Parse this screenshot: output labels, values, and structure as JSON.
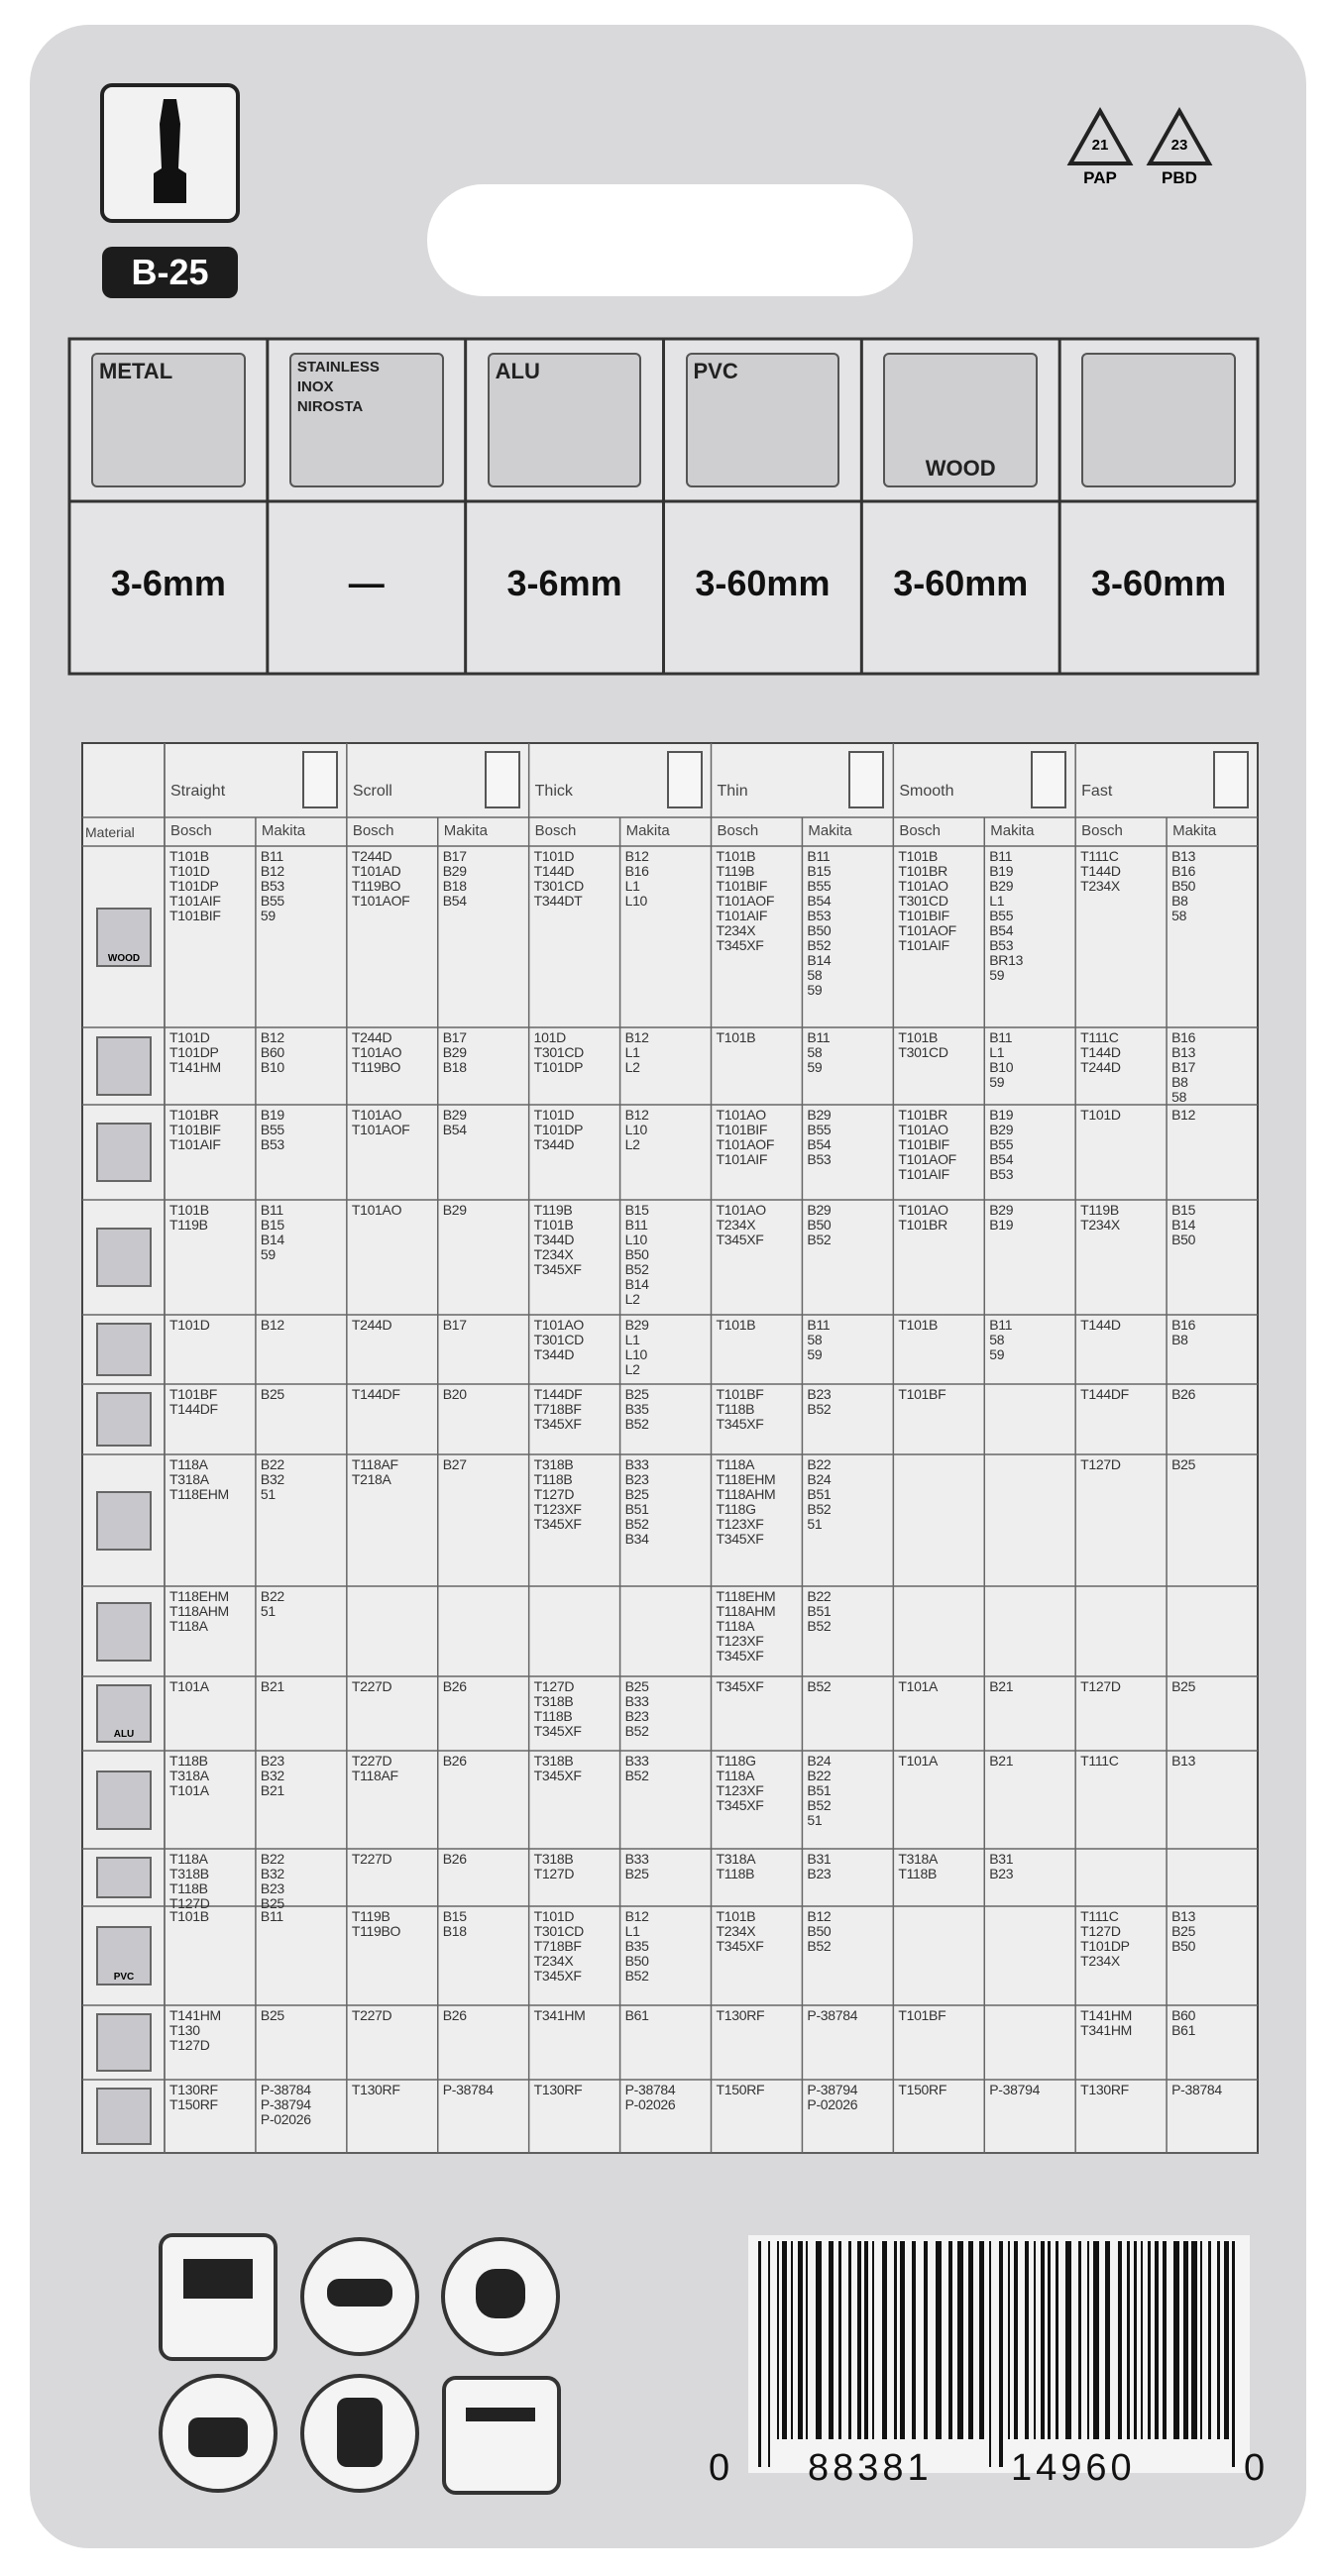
{
  "header": {
    "code": "B-25",
    "recycle": [
      {
        "number": "21",
        "label": "PAP"
      },
      {
        "number": "23",
        "label": "PBD"
      }
    ]
  },
  "materials": {
    "columns": [
      {
        "icon": [
          "METAL"
        ],
        "thickness": "3-6mm"
      },
      {
        "icon": [
          "STAINLESS",
          "INOX",
          "NIROSTA"
        ],
        "thickness": "—"
      },
      {
        "icon": [
          "ALU"
        ],
        "thickness": "3-6mm"
      },
      {
        "icon": [
          "PVC"
        ],
        "thickness": "3-60mm"
      },
      {
        "icon": [
          "WOOD"
        ],
        "thickness": "3-60mm"
      },
      {
        "thickness": "3-60mm"
      }
    ]
  },
  "table": {
    "material_header": "Material",
    "groups": [
      "Straight",
      "Scroll",
      "Thick",
      "Thin",
      "Smooth",
      "Fast"
    ],
    "brands": [
      "Bosch",
      "Makita"
    ],
    "rows": [
      {
        "icon": "WOOD",
        "cells": [
          [
            "T101B",
            "T101D",
            "T101DP",
            "T101AIF",
            "T101BIF"
          ],
          [
            "B11",
            "B12",
            "B53",
            "B55",
            "59"
          ],
          [
            "T244D",
            "T101AD",
            "T119BO",
            "T101AOF"
          ],
          [
            "B17",
            "B29",
            "B18",
            "B54"
          ],
          [
            "T101D",
            "T144D",
            "T301CD",
            "T344DT"
          ],
          [
            "B12",
            "B16",
            "L1",
            "L10"
          ],
          [
            "T101B",
            "T119B",
            "T101BIF",
            "T101AOF",
            "T101AIF",
            "T234X",
            "T345XF"
          ],
          [
            "B11",
            "B15",
            "B55",
            "B54",
            "B53",
            "B50",
            "B52",
            "B14",
            "58",
            "59"
          ],
          [
            "T101B",
            "T101BR",
            "T101AO",
            "T301CD",
            "T101BIF",
            "T101AOF",
            "T101AIF"
          ],
          [
            "B11",
            "B19",
            "B29",
            "L1",
            "B55",
            "B54",
            "B53",
            "BR13",
            "59"
          ],
          [
            "T111C",
            "T144D",
            "T234X"
          ],
          [
            "B13",
            "B16",
            "B50",
            "B8",
            "58"
          ]
        ]
      },
      {
        "cells": [
          [
            "T101D",
            "T101DP",
            "T141HM"
          ],
          [
            "B12",
            "B60",
            "B10"
          ],
          [
            "T244D",
            "T101AO",
            "T119BO"
          ],
          [
            "B17",
            "B29",
            "B18"
          ],
          [
            "101D",
            "T301CD",
            "T101DP"
          ],
          [
            "B12",
            "L1",
            "L2"
          ],
          [
            "T101B"
          ],
          [
            "B11",
            "58",
            "59"
          ],
          [
            "T101B",
            "T301CD"
          ],
          [
            "B11",
            "L1",
            "B10",
            "59"
          ],
          [
            "T111C",
            "T144D",
            "T244D"
          ],
          [
            "B16",
            "B13",
            "B17",
            "B8",
            "58"
          ]
        ]
      },
      {
        "cells": [
          [
            "T101BR",
            "T101BIF",
            "T101AIF"
          ],
          [
            "B19",
            "B55",
            "B53"
          ],
          [
            "T101AO",
            "T101AOF"
          ],
          [
            "B29",
            "B54"
          ],
          [
            "T101D",
            "T101DP",
            "T344D"
          ],
          [
            "B12",
            "L10",
            "L2"
          ],
          [
            "T101AO",
            "T101BIF",
            "T101AOF",
            "T101AIF"
          ],
          [
            "B29",
            "B55",
            "B54",
            "B53"
          ],
          [
            "T101BR",
            "T101AO",
            "T101BIF",
            "T101AOF",
            "T101AIF"
          ],
          [
            "B19",
            "B29",
            "B55",
            "B54",
            "B53"
          ],
          [
            "T101D"
          ],
          [
            "B12"
          ]
        ]
      },
      {
        "cells": [
          [
            "T101B",
            "T119B"
          ],
          [
            "B11",
            "B15",
            "B14",
            "59"
          ],
          [
            "T101AO"
          ],
          [
            "B29"
          ],
          [
            "T119B",
            "T101B",
            "T344D",
            "T234X",
            "T345XF"
          ],
          [
            "B15",
            "B11",
            "L10",
            "B50",
            "B52",
            "B14",
            "L2"
          ],
          [
            "T101AO",
            "T234X",
            "T345XF"
          ],
          [
            "B29",
            "B50",
            "B52"
          ],
          [
            "T101AO",
            "T101BR"
          ],
          [
            "B29",
            "B19"
          ],
          [
            "T119B",
            "T234X"
          ],
          [
            "B15",
            "B14",
            "B50"
          ]
        ]
      },
      {
        "cells": [
          [
            "T101D"
          ],
          [
            "B12"
          ],
          [
            "T244D"
          ],
          [
            "B17"
          ],
          [
            "T101AO",
            "T301CD",
            "T344D"
          ],
          [
            "B29",
            "L1",
            "L10",
            "L2"
          ],
          [
            "T101B"
          ],
          [
            "B11",
            "58",
            "59"
          ],
          [
            "T101B"
          ],
          [
            "B11",
            "58",
            "59"
          ],
          [
            "T144D"
          ],
          [
            "B16",
            "B8"
          ]
        ]
      },
      {
        "cells": [
          [
            "T101BF",
            "T144DF"
          ],
          [
            "B25"
          ],
          [
            "T144DF"
          ],
          [
            "B20"
          ],
          [
            "T144DF",
            "T718BF",
            "T345XF"
          ],
          [
            "B25",
            "B35",
            "B52"
          ],
          [
            "T101BF",
            "T118B",
            "T345XF"
          ],
          [
            "B23",
            "B52"
          ],
          [
            "T101BF"
          ],
          [],
          [
            "T144DF"
          ],
          [
            "B26"
          ]
        ]
      },
      {
        "cells": [
          [
            "T118A",
            "T318A",
            "T118EHM"
          ],
          [
            "B22",
            "B32",
            "51"
          ],
          [
            "T118AF",
            "T218A"
          ],
          [
            "B27"
          ],
          [
            "T318B",
            "T118B",
            "T127D",
            "T123XF",
            "T345XF"
          ],
          [
            "B33",
            "B23",
            "B25",
            "B51",
            "B52",
            "B34"
          ],
          [
            "T118A",
            "T118EHM",
            "T118AHM",
            "T118G",
            "T123XF",
            "T345XF"
          ],
          [
            "B22",
            "B24",
            "B51",
            "B52",
            "51"
          ],
          [],
          [],
          [
            "T127D"
          ],
          [
            "B25"
          ]
        ]
      },
      {
        "cells": [
          [
            "T118EHM",
            "T118AHM",
            "T118A"
          ],
          [
            "B22",
            "51"
          ],
          [],
          [],
          [],
          [],
          [
            "T118EHM",
            "T118AHM",
            "T118A",
            "T123XF",
            "T345XF"
          ],
          [
            "B22",
            "B51",
            "B52"
          ],
          [],
          [],
          [],
          []
        ]
      },
      {
        "icon": "ALU",
        "cells": [
          [
            "T101A"
          ],
          [
            "B21"
          ],
          [
            "T227D"
          ],
          [
            "B26"
          ],
          [
            "T127D",
            "T318B",
            "T118B",
            "T345XF"
          ],
          [
            "B25",
            "B33",
            "B23",
            "B52"
          ],
          [
            "T345XF"
          ],
          [
            "B52"
          ],
          [
            "T101A"
          ],
          [
            "B21"
          ],
          [
            "T127D"
          ],
          [
            "B25"
          ]
        ]
      },
      {
        "cells": [
          [
            "T118B",
            "T318A",
            "T101A"
          ],
          [
            "B23",
            "B32",
            "B21"
          ],
          [
            "T227D",
            "T118AF"
          ],
          [
            "B26"
          ],
          [
            "T318B",
            "T345XF"
          ],
          [
            "B33",
            "B52"
          ],
          [
            "T118G",
            "T118A",
            "T123XF",
            "T345XF"
          ],
          [
            "B24",
            "B22",
            "B51",
            "B52",
            "51"
          ],
          [
            "T101A"
          ],
          [
            "B21"
          ],
          [
            "T111C"
          ],
          [
            "B13"
          ]
        ]
      },
      {
        "cells": [
          [
            "T118A",
            "T318B",
            "T118B",
            "T127D"
          ],
          [
            "B22",
            "B32",
            "B23",
            "B25"
          ],
          [
            "T227D"
          ],
          [
            "B26"
          ],
          [
            "T318B",
            "T127D"
          ],
          [
            "B33",
            "B25"
          ],
          [
            "T318A",
            "T118B"
          ],
          [
            "B31",
            "B23"
          ],
          [
            "T318A",
            "T118B"
          ],
          [
            "B31",
            "B23"
          ],
          [],
          []
        ]
      },
      {
        "icon": "PVC",
        "cells": [
          [
            "T101B"
          ],
          [
            "B11"
          ],
          [
            "T119B",
            "T119BO"
          ],
          [
            "B15",
            "B18"
          ],
          [
            "T101D",
            "T301CD",
            "T718BF",
            "T234X",
            "T345XF"
          ],
          [
            "B12",
            "L1",
            "B35",
            "B50",
            "B52"
          ],
          [
            "T101B",
            "T234X",
            "T345XF"
          ],
          [
            "B12",
            "B50",
            "B52"
          ],
          [],
          [],
          [
            "T111C",
            "T127D",
            "T101DP",
            "T234X"
          ],
          [
            "B13",
            "B25",
            "B50"
          ]
        ]
      },
      {
        "cells": [
          [
            "T141HM",
            "T130",
            "T127D"
          ],
          [
            "B25"
          ],
          [
            "T227D"
          ],
          [
            "B26"
          ],
          [
            "T341HM"
          ],
          [
            "B61"
          ],
          [
            "T130RF"
          ],
          [
            "P-38784"
          ],
          [
            "T101BF"
          ],
          [],
          [
            "T141HM",
            "T341HM"
          ],
          [
            "B60",
            "B61"
          ]
        ]
      },
      {
        "cells": [
          [
            "T130RF",
            "T150RF"
          ],
          [
            "P-38784",
            "P-38794",
            "P-02026"
          ],
          [
            "T130RF"
          ],
          [
            "P-38784"
          ],
          [
            "T130RF"
          ],
          [
            "P-38784",
            "P-02026"
          ],
          [
            "T150RF"
          ],
          [
            "P-38794",
            "P-02026"
          ],
          [
            "T150RF"
          ],
          [
            "P-38794"
          ],
          [
            "T130RF"
          ],
          [
            "P-38784"
          ]
        ]
      }
    ]
  },
  "barcode": {
    "digits": [
      "0",
      "88381",
      "14960",
      "0"
    ]
  }
}
